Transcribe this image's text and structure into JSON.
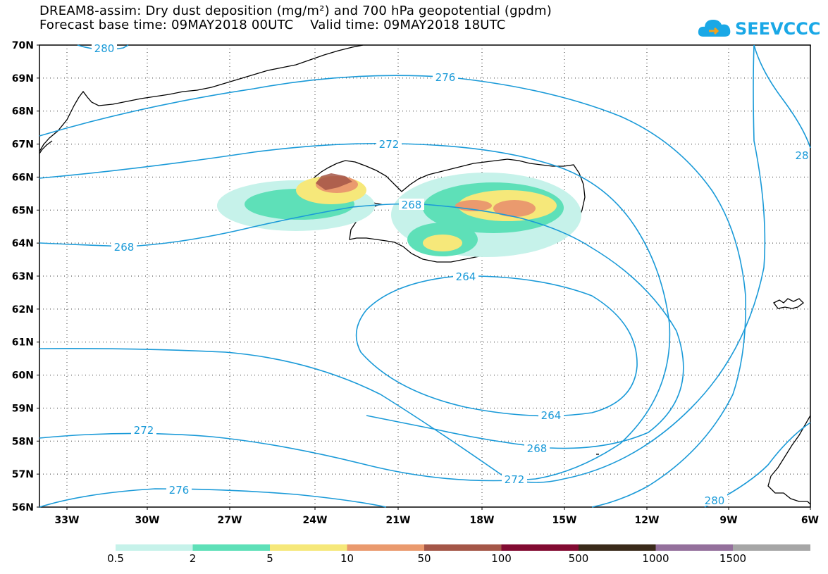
{
  "title": {
    "line1": "DREAM8-assim: Dry dust deposition (mg/m²) and 700 hPa geopotential (gpdm)",
    "line2": "Forecast base time: 09MAY2018 00UTC    Valid time: 09MAY2018 18UTC"
  },
  "logo": {
    "text": "SEEVCCC",
    "icon": "cloud-logo-icon",
    "color": "#1aa8e6"
  },
  "map": {
    "lat_labels": [
      "70N",
      "69N",
      "68N",
      "67N",
      "66N",
      "65N",
      "64N",
      "63N",
      "62N",
      "61N",
      "60N",
      "59N",
      "58N",
      "57N",
      "56N"
    ],
    "lon_labels": [
      "33W",
      "30W",
      "27W",
      "24W",
      "21W",
      "18W",
      "15W",
      "12W",
      "9W",
      "6W"
    ],
    "contour_color": "#1a9ad8",
    "contour_labels": [
      "280",
      "276",
      "272",
      "268",
      "268",
      "264",
      "264",
      "268",
      "272",
      "272",
      "276",
      "280",
      "28"
    ]
  },
  "legend": {
    "thresholds": [
      "0.5",
      "2",
      "5",
      "10",
      "50",
      "100",
      "500",
      "1000",
      "1500"
    ],
    "colors": [
      "#c6f2ea",
      "#5ee0b8",
      "#f6e87a",
      "#ea9a6e",
      "#a45648",
      "#820b32",
      "#3a2a1a",
      "#94709c",
      "#a6a6a6"
    ]
  }
}
